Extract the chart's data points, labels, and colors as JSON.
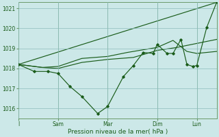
{
  "xlabel": "Pression niveau de la mer( hPa )",
  "bg_color": "#cce8e8",
  "grid_color": "#8cbcbc",
  "line_color": "#1a5c1a",
  "tick_color": "#1a5c1a",
  "axis_color": "#6a9a6a",
  "ylim": [
    1015.5,
    1021.3
  ],
  "ytick_values": [
    1016,
    1017,
    1018,
    1019,
    1020,
    1021
  ],
  "xlim": [
    0,
    100
  ],
  "xtick_positions": [
    0,
    20,
    45,
    70,
    90
  ],
  "xtick_labels": [
    "I",
    "Sam",
    "Mar",
    "Dim",
    "Lun"
  ],
  "vline_positions": [
    0,
    20,
    45,
    70,
    90
  ],
  "trend_x": [
    0,
    100
  ],
  "trend_y": [
    1018.2,
    1021.3
  ],
  "series2_x": [
    0,
    12,
    20,
    32,
    45,
    58,
    70,
    80,
    90,
    100
  ],
  "series2_y": [
    1018.2,
    1018.05,
    1018.0,
    1018.3,
    1018.45,
    1018.55,
    1018.9,
    1019.05,
    1019.25,
    1019.45
  ],
  "series3_x": [
    0,
    12,
    20,
    32,
    45,
    55,
    70,
    78,
    85,
    90,
    100
  ],
  "series3_y": [
    1018.2,
    1018.05,
    1018.1,
    1018.5,
    1018.6,
    1018.8,
    1019.05,
    1019.4,
    1018.85,
    1018.75,
    1018.85
  ],
  "main_x": [
    0,
    8,
    15,
    20,
    26,
    32,
    40,
    45,
    53,
    58,
    63,
    68,
    70,
    75,
    78,
    82,
    85,
    88,
    90,
    95,
    100
  ],
  "main_y": [
    1018.2,
    1017.85,
    1017.85,
    1017.75,
    1017.1,
    1016.6,
    1015.75,
    1016.1,
    1017.6,
    1018.15,
    1018.8,
    1018.75,
    1019.2,
    1018.75,
    1018.75,
    1019.45,
    1018.2,
    1018.1,
    1018.15,
    1020.05,
    1021.3
  ]
}
